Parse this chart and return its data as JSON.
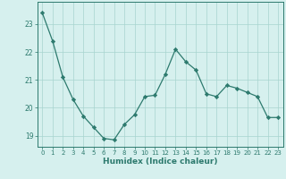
{
  "x": [
    0,
    1,
    2,
    3,
    4,
    5,
    6,
    7,
    8,
    9,
    10,
    11,
    12,
    13,
    14,
    15,
    16,
    17,
    18,
    19,
    20,
    21,
    22,
    23
  ],
  "y": [
    23.4,
    22.4,
    21.1,
    20.3,
    19.7,
    19.3,
    18.9,
    18.85,
    19.4,
    19.75,
    20.4,
    20.45,
    21.2,
    22.1,
    21.65,
    21.35,
    20.5,
    20.4,
    20.8,
    20.7,
    20.55,
    20.4,
    19.65,
    19.65
  ],
  "xlabel": "Humidex (Indice chaleur)",
  "ylim": [
    18.6,
    23.8
  ],
  "xlim": [
    -0.5,
    23.5
  ],
  "yticks": [
    19,
    20,
    21,
    22,
    23
  ],
  "xticks": [
    0,
    1,
    2,
    3,
    4,
    5,
    6,
    7,
    8,
    9,
    10,
    11,
    12,
    13,
    14,
    15,
    16,
    17,
    18,
    19,
    20,
    21,
    22,
    23
  ],
  "line_color": "#2d7a6e",
  "marker_color": "#2d7a6e",
  "bg_color": "#d6f0ee",
  "grid_color": "#a8d4cf",
  "axis_color": "#2d7a6e",
  "tick_color": "#2d7a6e",
  "label_color": "#2d7a6e"
}
